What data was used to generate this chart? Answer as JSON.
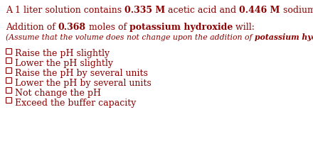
{
  "bg_color": "#ffffff",
  "text_color": "#8B0000",
  "font_size_main": 9.0,
  "font_size_small": 7.8,
  "options": [
    "Raise the pH slightly",
    "Lower the pH slightly",
    "Raise the pH by several units",
    "Lower the pH by several units",
    "Not change the pH",
    "Exceed the buffer capacity"
  ]
}
